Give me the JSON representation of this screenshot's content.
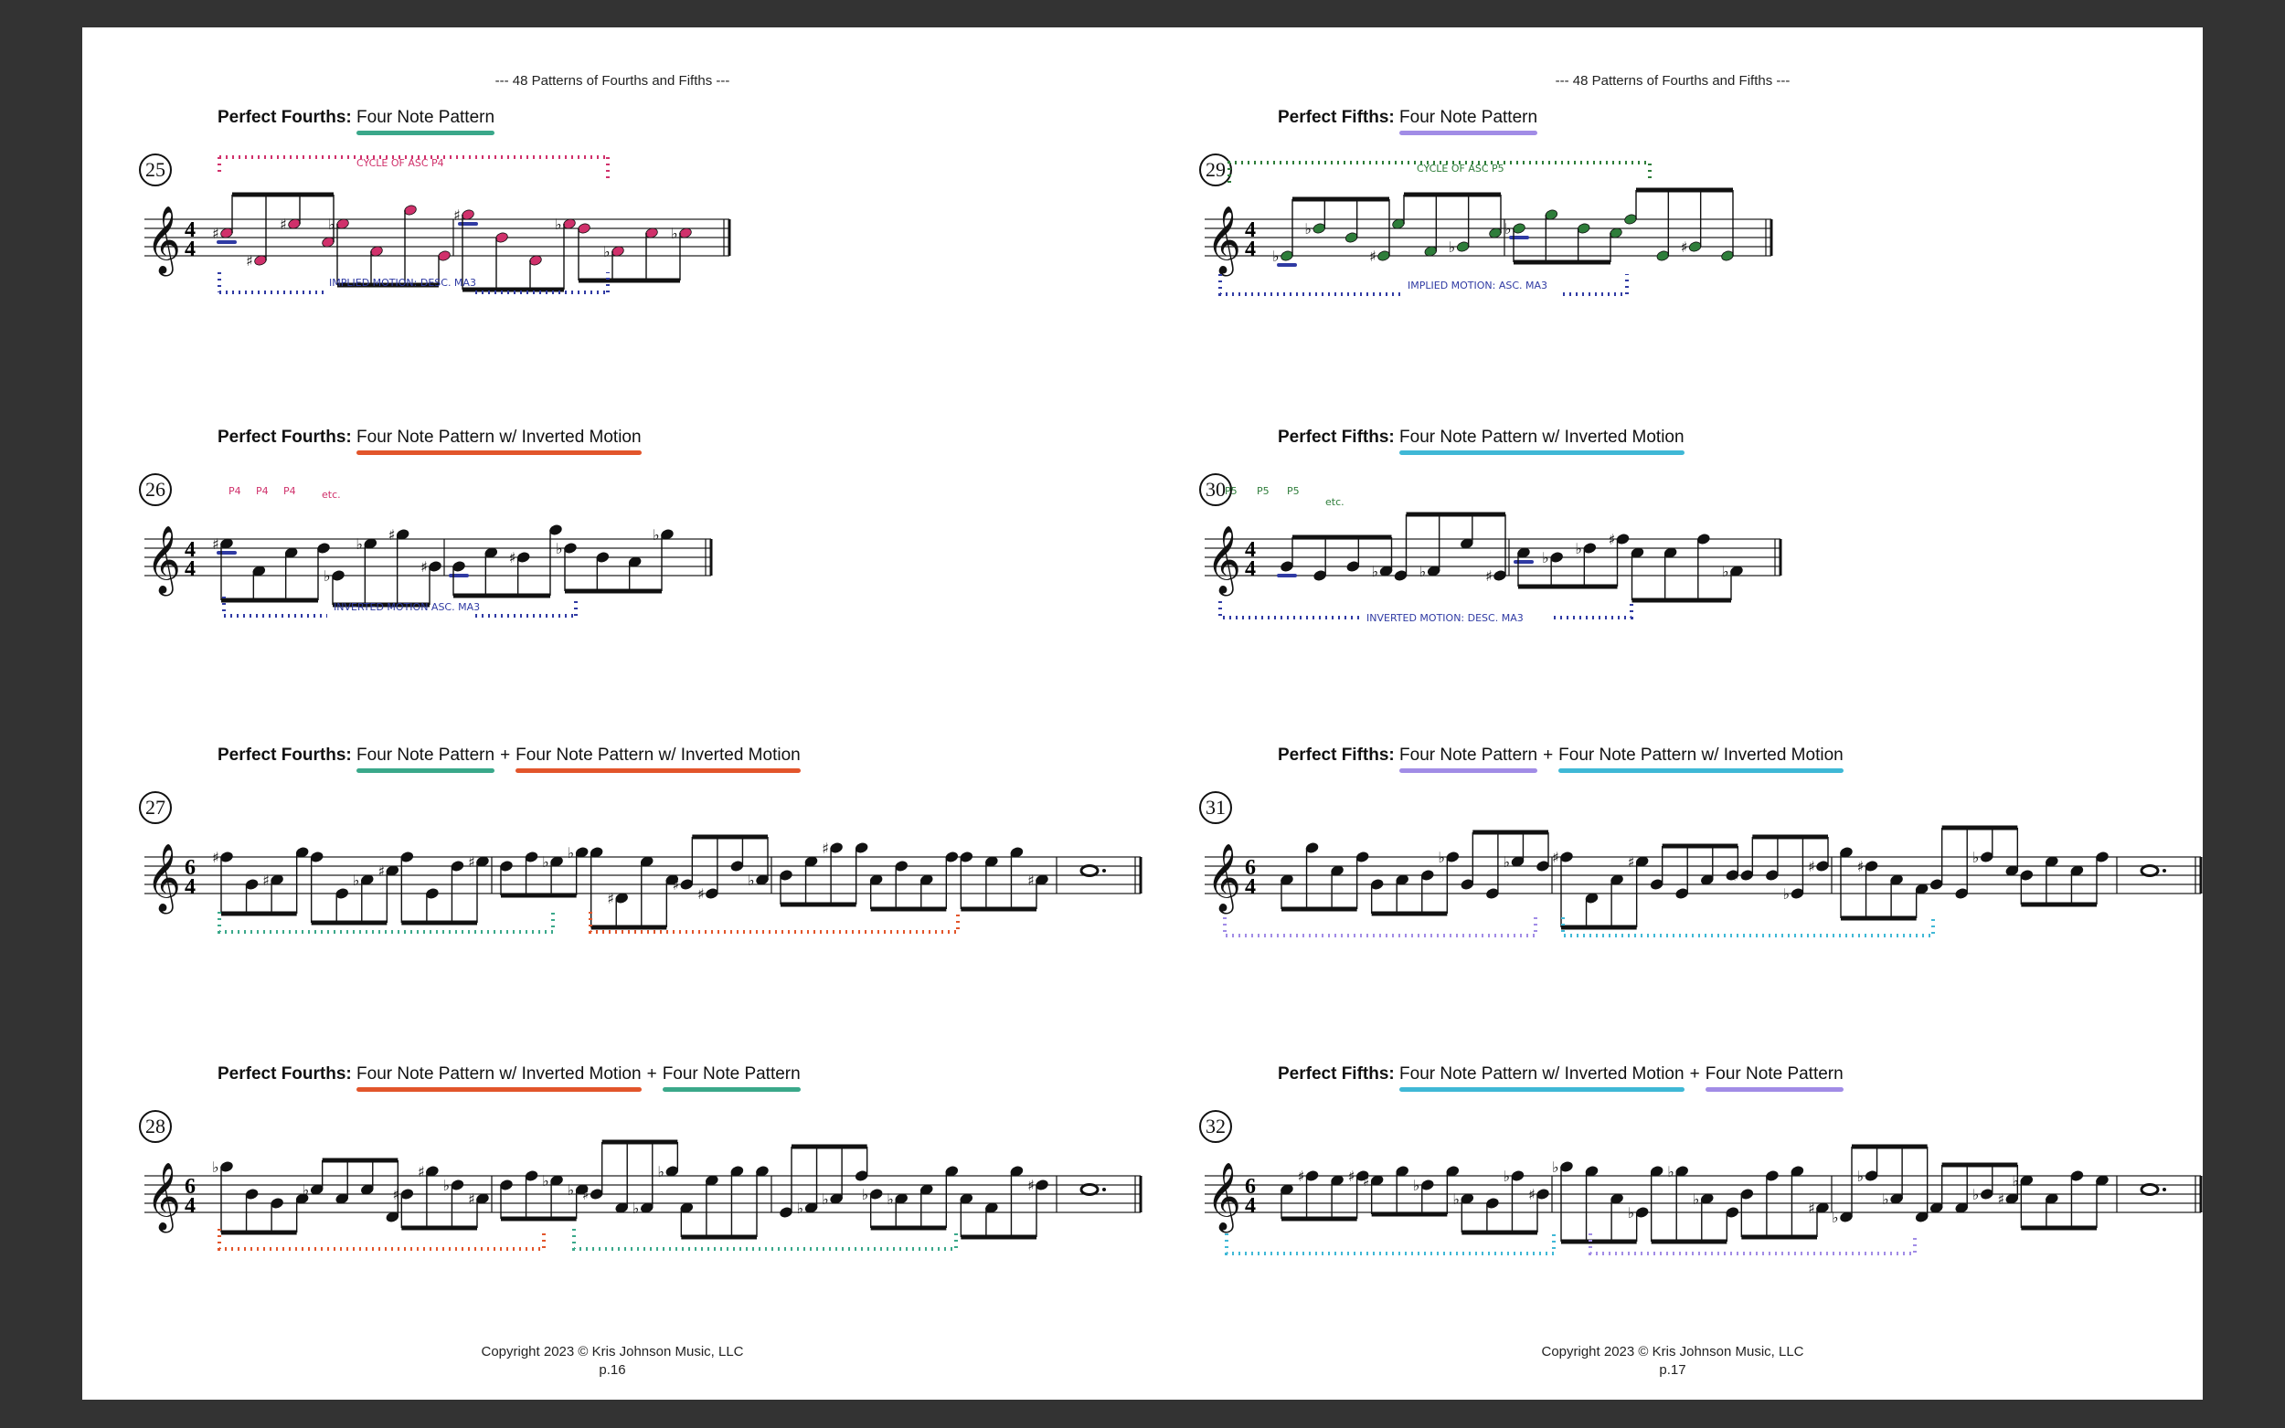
{
  "pages": [
    {
      "running_head": "--- 48 Patterns of Fourths and Fifths ---",
      "copyright": "Copyright 2023 © Kris Johnson Music, LLC",
      "page_number": "p.16",
      "exercises": [
        {
          "number": "25",
          "label": "Perfect Fourths:",
          "patterns": [
            {
              "text": "Four Note Pattern",
              "color": "#3aa88a"
            }
          ],
          "time_signature": {
            "top": "4",
            "bottom": "4"
          },
          "annotations": {
            "top": "CYCLE OF ASC P4",
            "bottom": "IMPLIED MOTION: DESC. MA3",
            "intervals": []
          },
          "note_color": "#d0316b",
          "bracket_color_top": "#d0316b",
          "bracket_color_bottom": "#2f3aa3"
        },
        {
          "number": "26",
          "label": "Perfect Fourths:",
          "patterns": [
            {
              "text": "Four Note Pattern w/ Inverted Motion",
              "color": "#e2552b"
            }
          ],
          "time_signature": {
            "top": "4",
            "bottom": "4"
          },
          "annotations": {
            "top": "",
            "bottom": "INVERTED MOTION ASC. MA3",
            "intervals": [
              "P4",
              "P4",
              "P4",
              "etc."
            ]
          },
          "note_color": "#111111",
          "bracket_color_top": "#d0316b",
          "bracket_color_bottom": "#2f3aa3"
        },
        {
          "number": "27",
          "label": "Perfect Fourths:",
          "patterns": [
            {
              "text": "Four Note Pattern",
              "color": "#3aa88a"
            },
            {
              "text": "Four Note Pattern w/ Inverted Motion",
              "color": "#e2552b"
            }
          ],
          "plus": "+",
          "time_signature": {
            "top": "6",
            "bottom": "4"
          },
          "annotations": {
            "top": "",
            "bottom": "",
            "intervals": []
          },
          "bracket_colors": [
            "#3aa88a",
            "#e2552b"
          ]
        },
        {
          "number": "28",
          "label": "Perfect Fourths:",
          "patterns": [
            {
              "text": "Four Note Pattern w/ Inverted Motion",
              "color": "#e2552b"
            },
            {
              "text": "Four Note Pattern",
              "color": "#3aa88a"
            }
          ],
          "plus": "+",
          "time_signature": {
            "top": "6",
            "bottom": "4"
          },
          "annotations": {
            "top": "",
            "bottom": "",
            "intervals": []
          },
          "bracket_colors": [
            "#e2552b",
            "#3aa88a"
          ]
        }
      ]
    },
    {
      "running_head": "--- 48 Patterns of Fourths and Fifths ---",
      "copyright": "Copyright 2023 © Kris Johnson Music, LLC",
      "page_number": "p.17",
      "exercises": [
        {
          "number": "29",
          "label": "Perfect Fifths:",
          "patterns": [
            {
              "text": "Four Note Pattern",
              "color": "#a18ce6"
            }
          ],
          "time_signature": {
            "top": "4",
            "bottom": "4"
          },
          "annotations": {
            "top": "CYCLE OF ASC P5",
            "bottom": "IMPLIED MOTION: ASC. MA3",
            "intervals": []
          },
          "note_color": "#2e7d3a",
          "bracket_color_top": "#2e7d3a",
          "bracket_color_bottom": "#2f3aa3"
        },
        {
          "number": "30",
          "label": "Perfect Fifths:",
          "patterns": [
            {
              "text": "Four Note Pattern w/ Inverted Motion",
              "color": "#3fb8d6"
            }
          ],
          "time_signature": {
            "top": "4",
            "bottom": "4"
          },
          "annotations": {
            "top": "",
            "bottom": "INVERTED MOTION: DESC. MA3",
            "intervals": [
              "P5",
              "P5",
              "P5",
              "etc."
            ]
          },
          "note_color": "#111111",
          "bracket_color_top": "#2e7d3a",
          "bracket_color_bottom": "#2f3aa3"
        },
        {
          "number": "31",
          "label": "Perfect Fifths:",
          "patterns": [
            {
              "text": "Four Note Pattern",
              "color": "#a18ce6"
            },
            {
              "text": "Four Note Pattern w/ Inverted Motion",
              "color": "#3fb8d6"
            }
          ],
          "plus": "+",
          "time_signature": {
            "top": "6",
            "bottom": "4"
          },
          "annotations": {
            "top": "",
            "bottom": "",
            "intervals": []
          },
          "bracket_colors": [
            "#a18ce6",
            "#3fb8d6"
          ]
        },
        {
          "number": "32",
          "label": "Perfect Fifths:",
          "patterns": [
            {
              "text": "Four Note Pattern w/ Inverted Motion",
              "color": "#3fb8d6"
            },
            {
              "text": "Four Note Pattern",
              "color": "#a18ce6"
            }
          ],
          "plus": "+",
          "time_signature": {
            "top": "6",
            "bottom": "4"
          },
          "annotations": {
            "top": "",
            "bottom": "",
            "intervals": []
          },
          "bracket_colors": [
            "#3fb8d6",
            "#a18ce6"
          ]
        }
      ]
    }
  ]
}
